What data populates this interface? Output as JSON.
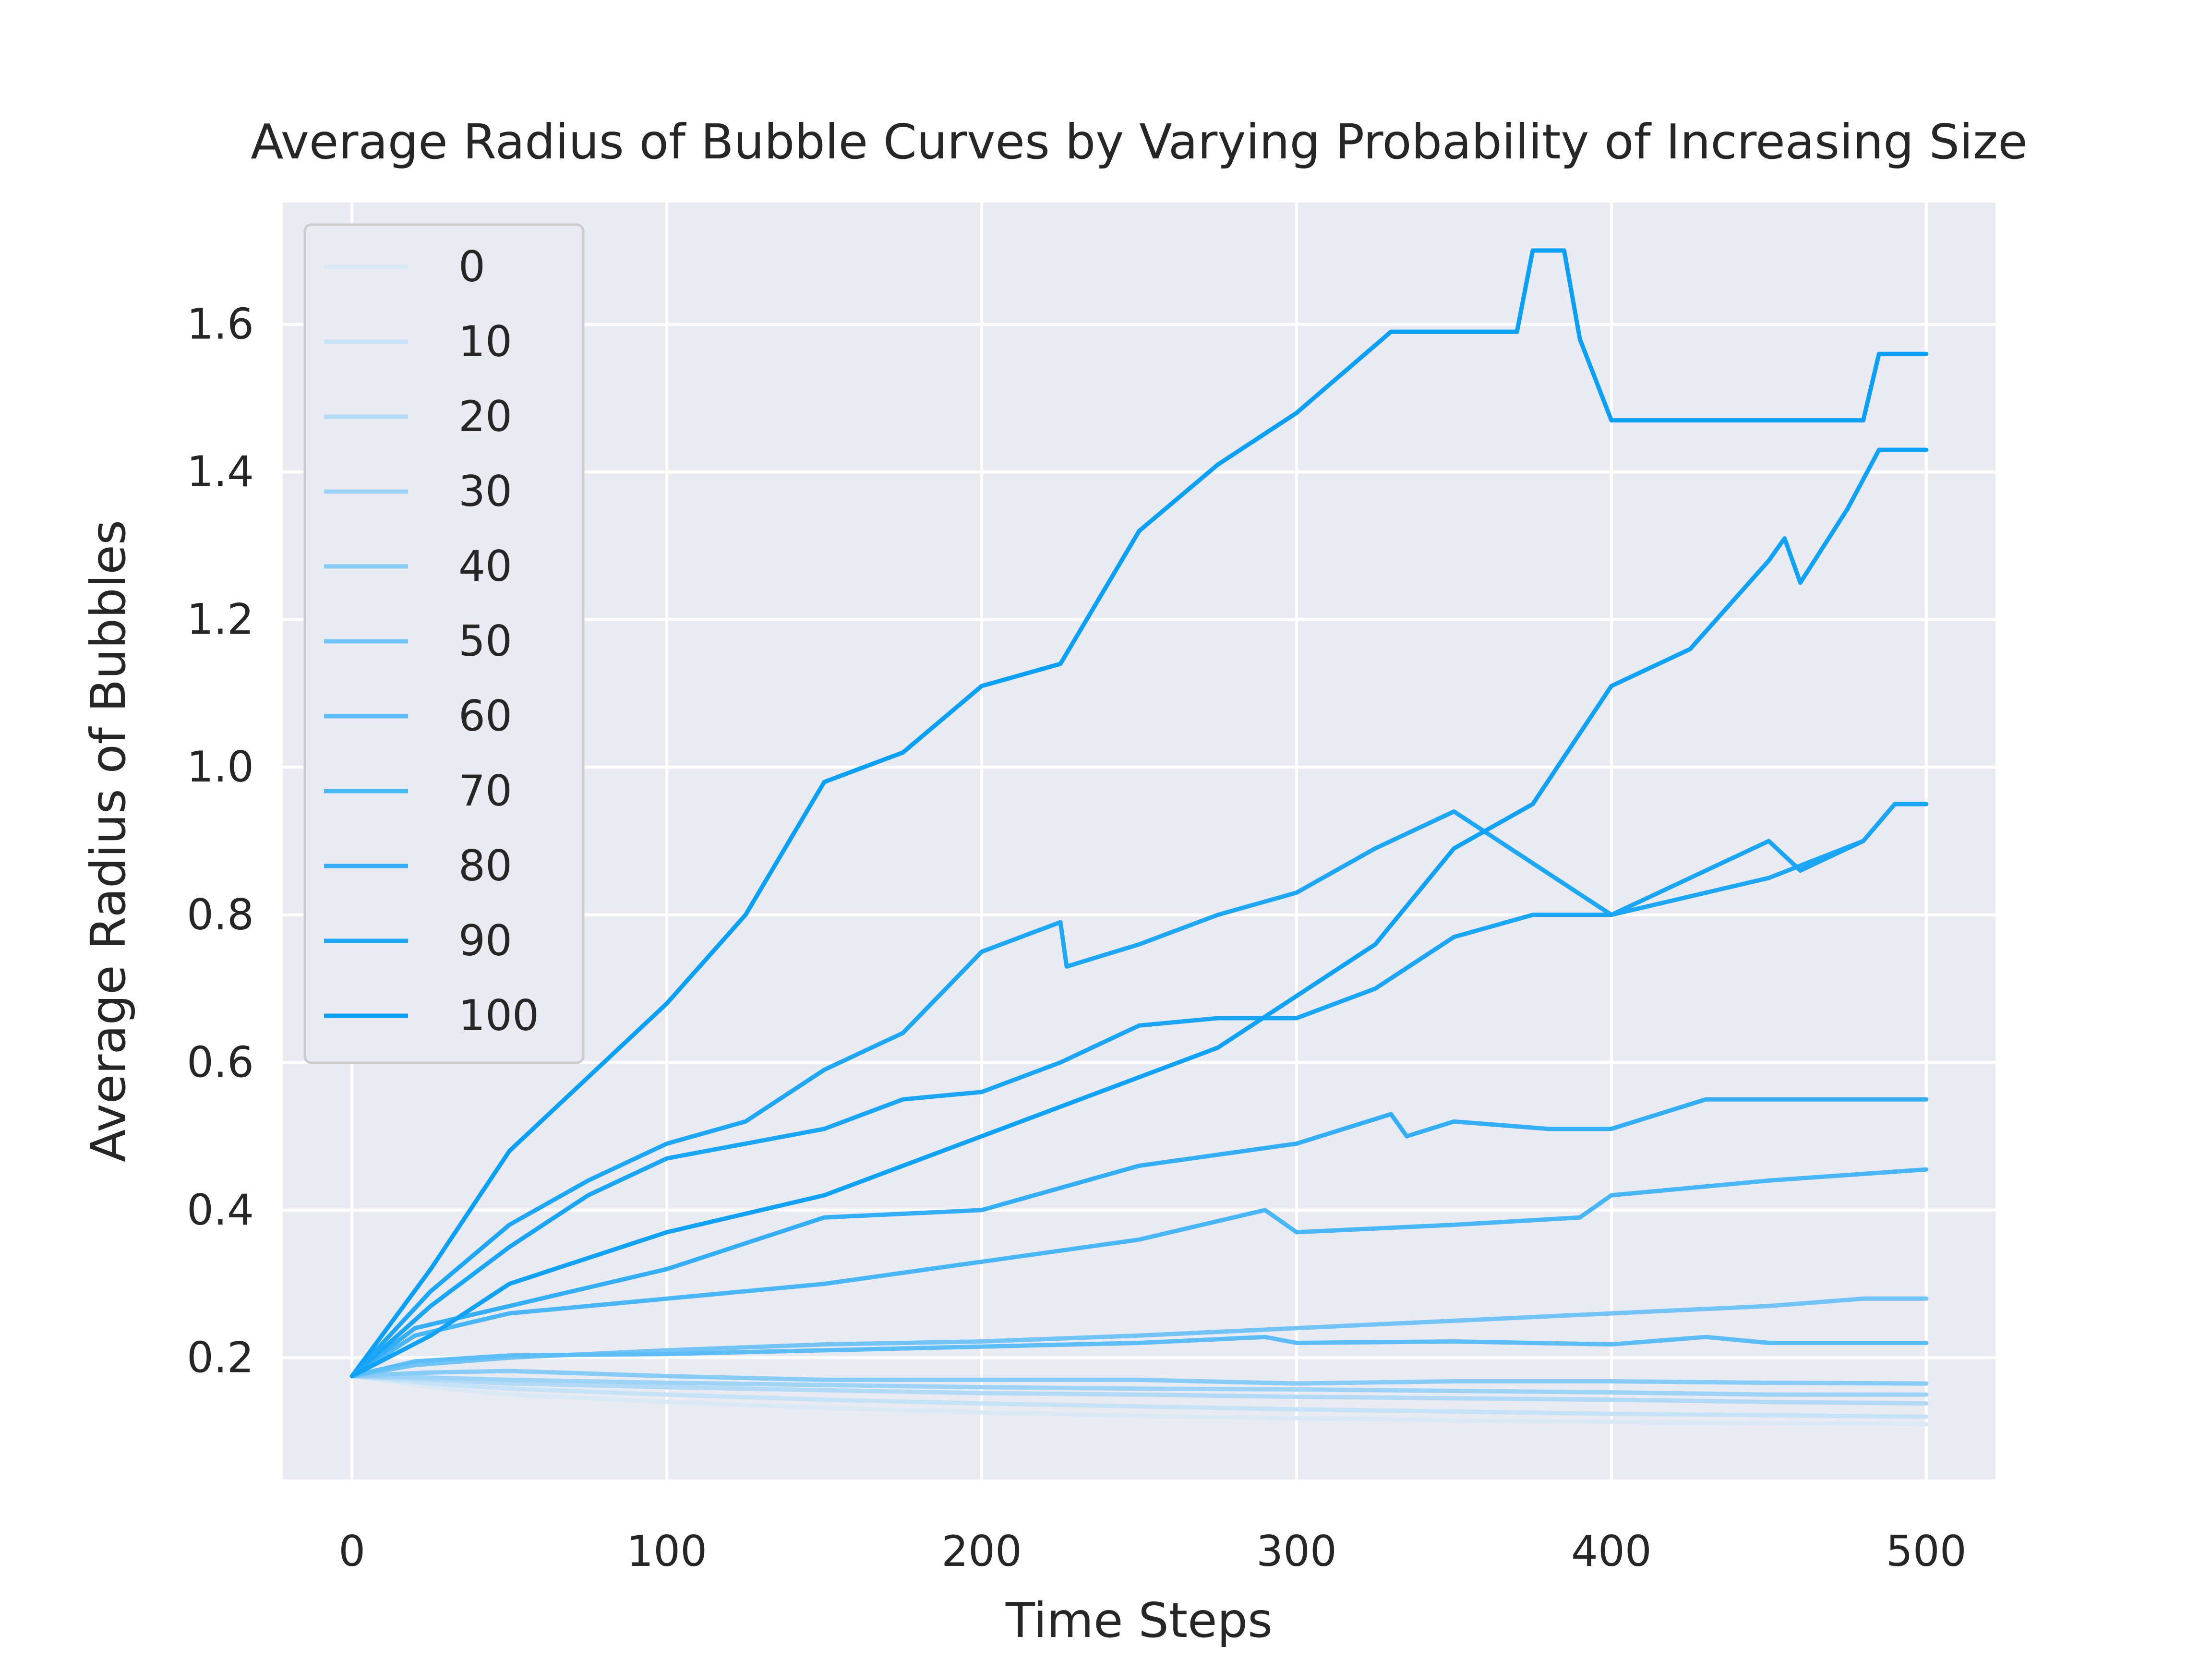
{
  "chart_data": {
    "type": "line",
    "title": "Average Radius of Bubble Curves by Varying Probability of Increasing Size",
    "xlabel": "Time Steps",
    "ylabel": "Average Radius of Bubbles",
    "xlim": [
      -22,
      522
    ],
    "ylim": [
      0.035,
      1.765
    ],
    "x_ticks": [
      0,
      100,
      200,
      300,
      400,
      500
    ],
    "x_tick_labels": [
      "0",
      "100",
      "200",
      "300",
      "400",
      "500"
    ],
    "y_ticks": [
      0.2,
      0.4,
      0.6,
      0.8,
      1.0,
      1.2,
      1.4,
      1.6
    ],
    "y_tick_labels": [
      "0.2",
      "0.4",
      "0.6",
      "0.8",
      "1.0",
      "1.2",
      "1.4",
      "1.6"
    ],
    "grid": true,
    "background": "#eaeaf2",
    "grid_color": "#ffffff",
    "legend_position": "upper-left",
    "series": [
      {
        "name": "0",
        "color": "#dbe9f6",
        "points": [
          [
            0,
            0.175
          ],
          [
            25,
            0.16
          ],
          [
            50,
            0.15
          ],
          [
            100,
            0.14
          ],
          [
            150,
            0.132
          ],
          [
            200,
            0.126
          ],
          [
            250,
            0.121
          ],
          [
            300,
            0.118
          ],
          [
            350,
            0.115
          ],
          [
            400,
            0.113
          ],
          [
            450,
            0.111
          ],
          [
            500,
            0.11
          ]
        ]
      },
      {
        "name": "10",
        "color": "#c6e2f6",
        "points": [
          [
            0,
            0.175
          ],
          [
            25,
            0.165
          ],
          [
            50,
            0.158
          ],
          [
            100,
            0.15
          ],
          [
            150,
            0.143
          ],
          [
            200,
            0.138
          ],
          [
            250,
            0.134
          ],
          [
            300,
            0.13
          ],
          [
            350,
            0.127
          ],
          [
            400,
            0.124
          ],
          [
            450,
            0.122
          ],
          [
            500,
            0.12
          ]
        ]
      },
      {
        "name": "20",
        "color": "#b2daf6",
        "points": [
          [
            0,
            0.175
          ],
          [
            25,
            0.17
          ],
          [
            50,
            0.165
          ],
          [
            100,
            0.16
          ],
          [
            150,
            0.156
          ],
          [
            200,
            0.152
          ],
          [
            250,
            0.15
          ],
          [
            300,
            0.147
          ],
          [
            350,
            0.145
          ],
          [
            400,
            0.143
          ],
          [
            450,
            0.14
          ],
          [
            500,
            0.138
          ]
        ]
      },
      {
        "name": "30",
        "color": "#9dd3f7",
        "points": [
          [
            0,
            0.175
          ],
          [
            25,
            0.173
          ],
          [
            50,
            0.17
          ],
          [
            100,
            0.166
          ],
          [
            150,
            0.163
          ],
          [
            200,
            0.16
          ],
          [
            250,
            0.158
          ],
          [
            300,
            0.157
          ],
          [
            350,
            0.155
          ],
          [
            400,
            0.153
          ],
          [
            450,
            0.15
          ],
          [
            500,
            0.15
          ]
        ]
      },
      {
        "name": "40",
        "color": "#87ccf7",
        "points": [
          [
            0,
            0.175
          ],
          [
            25,
            0.18
          ],
          [
            50,
            0.182
          ],
          [
            100,
            0.175
          ],
          [
            150,
            0.17
          ],
          [
            200,
            0.17
          ],
          [
            250,
            0.17
          ],
          [
            300,
            0.165
          ],
          [
            350,
            0.168
          ],
          [
            400,
            0.168
          ],
          [
            450,
            0.166
          ],
          [
            500,
            0.165
          ]
        ]
      },
      {
        "name": "50",
        "color": "#72c4f7",
        "points": [
          [
            0,
            0.175
          ],
          [
            20,
            0.19
          ],
          [
            50,
            0.2
          ],
          [
            100,
            0.21
          ],
          [
            150,
            0.218
          ],
          [
            200,
            0.222
          ],
          [
            250,
            0.23
          ],
          [
            300,
            0.24
          ],
          [
            350,
            0.25
          ],
          [
            400,
            0.26
          ],
          [
            450,
            0.27
          ],
          [
            480,
            0.28
          ],
          [
            500,
            0.28
          ]
        ]
      },
      {
        "name": "60",
        "color": "#5dbdf7",
        "points": [
          [
            0,
            0.175
          ],
          [
            20,
            0.195
          ],
          [
            50,
            0.203
          ],
          [
            100,
            0.205
          ],
          [
            150,
            0.21
          ],
          [
            200,
            0.215
          ],
          [
            250,
            0.22
          ],
          [
            290,
            0.228
          ],
          [
            300,
            0.22
          ],
          [
            350,
            0.222
          ],
          [
            400,
            0.218
          ],
          [
            430,
            0.228
          ],
          [
            450,
            0.22
          ],
          [
            500,
            0.22
          ]
        ]
      },
      {
        "name": "70",
        "color": "#48b6f7",
        "points": [
          [
            0,
            0.175
          ],
          [
            20,
            0.23
          ],
          [
            50,
            0.26
          ],
          [
            100,
            0.28
          ],
          [
            150,
            0.3
          ],
          [
            200,
            0.33
          ],
          [
            250,
            0.36
          ],
          [
            290,
            0.4
          ],
          [
            300,
            0.37
          ],
          [
            350,
            0.38
          ],
          [
            390,
            0.39
          ],
          [
            400,
            0.42
          ],
          [
            450,
            0.44
          ],
          [
            500,
            0.455
          ]
        ]
      },
      {
        "name": "80",
        "color": "#33aef7",
        "points": [
          [
            0,
            0.175
          ],
          [
            20,
            0.24
          ],
          [
            50,
            0.27
          ],
          [
            100,
            0.32
          ],
          [
            150,
            0.39
          ],
          [
            200,
            0.4
          ],
          [
            250,
            0.46
          ],
          [
            300,
            0.49
          ],
          [
            330,
            0.53
          ],
          [
            335,
            0.5
          ],
          [
            350,
            0.52
          ],
          [
            380,
            0.51
          ],
          [
            400,
            0.51
          ],
          [
            430,
            0.55
          ],
          [
            500,
            0.55
          ]
        ]
      },
      {
        "name": "90",
        "color": "#1fa7f7",
        "points": [
          [
            0,
            0.175
          ],
          [
            25,
            0.29
          ],
          [
            50,
            0.38
          ],
          [
            75,
            0.44
          ],
          [
            100,
            0.49
          ],
          [
            125,
            0.52
          ],
          [
            150,
            0.59
          ],
          [
            175,
            0.64
          ],
          [
            200,
            0.75
          ],
          [
            225,
            0.79
          ],
          [
            227,
            0.73
          ],
          [
            250,
            0.76
          ],
          [
            275,
            0.8
          ],
          [
            300,
            0.83
          ],
          [
            325,
            0.89
          ],
          [
            350,
            0.94
          ],
          [
            400,
            0.8
          ],
          [
            450,
            0.85
          ],
          [
            480,
            0.9
          ],
          [
            490,
            0.95
          ],
          [
            500,
            0.95
          ]
        ]
      },
      {
        "name": "100",
        "color": "#0aa0f7",
        "points": [
          [
            0,
            0.175
          ],
          [
            25,
            0.32
          ],
          [
            50,
            0.48
          ],
          [
            75,
            0.58
          ],
          [
            100,
            0.68
          ],
          [
            125,
            0.8
          ],
          [
            150,
            0.98
          ],
          [
            175,
            1.02
          ],
          [
            200,
            1.11
          ],
          [
            225,
            1.14
          ],
          [
            250,
            1.32
          ],
          [
            275,
            1.41
          ],
          [
            300,
            1.48
          ],
          [
            330,
            1.59
          ],
          [
            370,
            1.59
          ],
          [
            375,
            1.7
          ],
          [
            385,
            1.7
          ],
          [
            390,
            1.58
          ],
          [
            400,
            1.47
          ],
          [
            480,
            1.47
          ],
          [
            485,
            1.56
          ],
          [
            500,
            1.56
          ]
        ]
      },
      {
        "name": "",
        "color": "#1aa5f7",
        "points": [
          [
            0,
            0.175
          ],
          [
            25,
            0.27
          ],
          [
            50,
            0.35
          ],
          [
            75,
            0.42
          ],
          [
            100,
            0.47
          ],
          [
            125,
            0.49
          ],
          [
            150,
            0.51
          ],
          [
            175,
            0.55
          ],
          [
            200,
            0.56
          ],
          [
            225,
            0.6
          ],
          [
            250,
            0.65
          ],
          [
            275,
            0.66
          ],
          [
            300,
            0.66
          ],
          [
            325,
            0.7
          ],
          [
            350,
            0.77
          ],
          [
            375,
            0.8
          ],
          [
            400,
            0.8
          ],
          [
            425,
            0.85
          ],
          [
            450,
            0.9
          ],
          [
            460,
            0.86
          ],
          [
            480,
            0.9
          ],
          [
            490,
            0.95
          ],
          [
            500,
            0.95
          ]
        ]
      },
      {
        "name": "",
        "color": "#0fa2f7",
        "points": [
          [
            0,
            0.175
          ],
          [
            25,
            0.23
          ],
          [
            50,
            0.3
          ],
          [
            100,
            0.37
          ],
          [
            150,
            0.42
          ],
          [
            200,
            0.5
          ],
          [
            250,
            0.58
          ],
          [
            275,
            0.62
          ],
          [
            300,
            0.69
          ],
          [
            325,
            0.76
          ],
          [
            350,
            0.89
          ],
          [
            375,
            0.95
          ],
          [
            400,
            1.11
          ],
          [
            425,
            1.16
          ],
          [
            450,
            1.28
          ],
          [
            455,
            1.31
          ],
          [
            460,
            1.25
          ],
          [
            475,
            1.35
          ],
          [
            485,
            1.43
          ],
          [
            500,
            1.43
          ]
        ]
      }
    ]
  }
}
